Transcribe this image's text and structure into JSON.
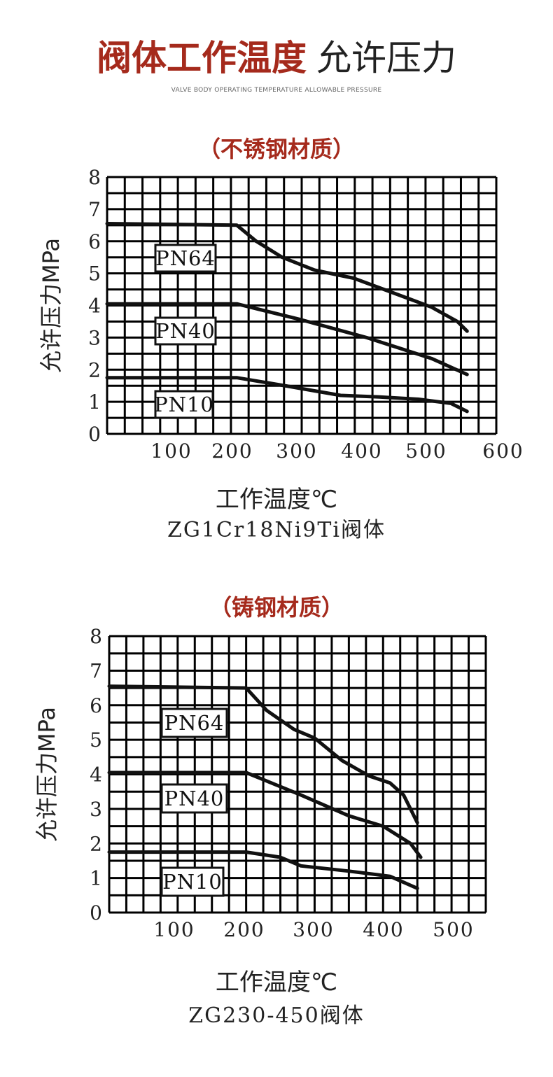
{
  "header": {
    "title_strong": "阀体工作温度",
    "title_light": "允许压力",
    "subtitle_en": "VALVE BODY OPERATING TEMPERATURE ALLOWABLE PRESSURE"
  },
  "colors": {
    "accent": "#a52a1c",
    "grid": "#000000",
    "text": "#222222"
  },
  "chart_data": [
    {
      "type": "line",
      "section_title": "（不锈钢材质）",
      "title": "ZG1Cr18Ni9Ti阀体",
      "xlabel": "工作温度℃",
      "ylabel": "允许压力MPa",
      "xlim": [
        0,
        600
      ],
      "ylim": [
        0,
        8
      ],
      "x_ticks": [
        "100",
        "200",
        "300",
        "400",
        "500",
        "600"
      ],
      "y_ticks": [
        "0",
        "1",
        "2",
        "3",
        "4",
        "5",
        "6",
        "7",
        "8"
      ],
      "grid": true,
      "series": [
        {
          "name": "PN64",
          "points": [
            [
              0,
              6.55
            ],
            [
              200,
              6.5
            ],
            [
              230,
              6.0
            ],
            [
              270,
              5.5
            ],
            [
              320,
              5.1
            ],
            [
              380,
              4.85
            ],
            [
              440,
              4.4
            ],
            [
              500,
              3.95
            ],
            [
              540,
              3.5
            ],
            [
              555,
              3.2
            ]
          ]
        },
        {
          "name": "PN40",
          "points": [
            [
              0,
              4.05
            ],
            [
              200,
              4.05
            ],
            [
              300,
              3.55
            ],
            [
              400,
              3.0
            ],
            [
              500,
              2.35
            ],
            [
              555,
              1.85
            ]
          ]
        },
        {
          "name": "PN10",
          "points": [
            [
              0,
              1.75
            ],
            [
              200,
              1.75
            ],
            [
              280,
              1.48
            ],
            [
              360,
              1.2
            ],
            [
              420,
              1.15
            ],
            [
              480,
              1.08
            ],
            [
              530,
              0.95
            ],
            [
              555,
              0.7
            ]
          ]
        }
      ]
    },
    {
      "type": "line",
      "section_title": "（铸钢材质）",
      "title": "ZG230-450阀体",
      "xlabel": "工作温度℃",
      "ylabel": "允许压力MPa",
      "xlim": [
        0,
        550
      ],
      "ylim": [
        0,
        8
      ],
      "x_ticks": [
        "100",
        "200",
        "300",
        "400",
        "500"
      ],
      "y_ticks": [
        "0",
        "1",
        "2",
        "3",
        "4",
        "5",
        "6",
        "7",
        "8"
      ],
      "grid": true,
      "series": [
        {
          "name": "PN64",
          "points": [
            [
              0,
              6.55
            ],
            [
              200,
              6.5
            ],
            [
              230,
              5.85
            ],
            [
              270,
              5.3
            ],
            [
              300,
              5.05
            ],
            [
              340,
              4.4
            ],
            [
              380,
              3.95
            ],
            [
              410,
              3.75
            ],
            [
              430,
              3.4
            ],
            [
              450,
              2.6
            ]
          ]
        },
        {
          "name": "PN40",
          "points": [
            [
              0,
              4.05
            ],
            [
              200,
              4.05
            ],
            [
              280,
              3.4
            ],
            [
              350,
              2.8
            ],
            [
              400,
              2.5
            ],
            [
              440,
              2.0
            ],
            [
              455,
              1.6
            ]
          ]
        },
        {
          "name": "PN10",
          "points": [
            [
              0,
              1.75
            ],
            [
              200,
              1.75
            ],
            [
              250,
              1.6
            ],
            [
              280,
              1.35
            ],
            [
              350,
              1.2
            ],
            [
              410,
              1.05
            ],
            [
              450,
              0.7
            ]
          ]
        }
      ]
    }
  ]
}
